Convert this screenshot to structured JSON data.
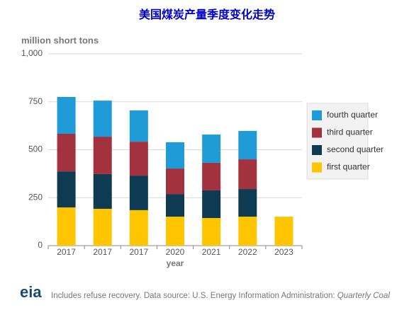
{
  "chart_data": {
    "type": "stacked-bar",
    "title": "美国煤炭产量季度变化走势",
    "y_label": "million short tons",
    "x_label": "year",
    "categories": [
      "2017",
      "2017",
      "2017",
      "2020",
      "2021",
      "2022",
      "2023"
    ],
    "series": [
      {
        "name": "first quarter",
        "color": "#ffc600",
        "values": [
          199,
          192,
          185,
          151,
          144,
          151,
          151
        ]
      },
      {
        "name": "second quarter",
        "color": "#0e3a52",
        "values": [
          188,
          181,
          180,
          118,
          144,
          144,
          null
        ]
      },
      {
        "name": "third quarter",
        "color": "#a3323f",
        "values": [
          196,
          195,
          177,
          133,
          144,
          155,
          null
        ]
      },
      {
        "name": "fourth quarter",
        "color": "#1f9bd7",
        "values": [
          192,
          188,
          163,
          137,
          147,
          148,
          null
        ]
      }
    ],
    "ylim": [
      0,
      1000
    ],
    "yticks": [
      0,
      250,
      500,
      750,
      {
        "value": 1000,
        "label": "1,000"
      }
    ],
    "grid": true,
    "legend": "right"
  },
  "footer": {
    "logo": "eia",
    "note": "Includes refuse recovery. Data source: U.S. Energy Information Administration: ",
    "source": "Quarterly Coal"
  }
}
